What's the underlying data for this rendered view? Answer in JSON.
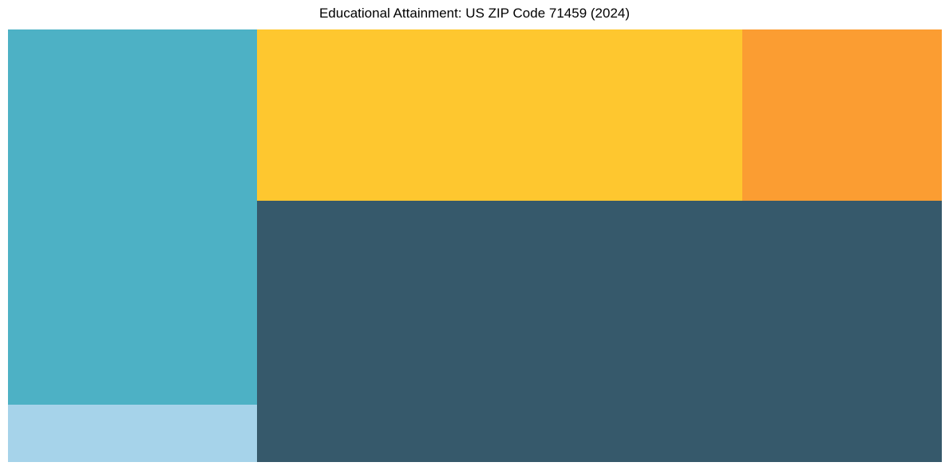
{
  "title": "Educational Attainment: US ZIP Code 71459 (2024)",
  "colors": {
    "background": "#ffffff",
    "title_text": "#000000"
  },
  "chart_data": {
    "type": "treemap",
    "title": "Educational Attainment: US ZIP Code 71459 (2024)",
    "labels_visible": false,
    "legend": "none",
    "cells": [
      {
        "id": "cell-dark-slate",
        "color": "#36596B",
        "area_pct": 44.3,
        "rect": {
          "x": 0.2667,
          "y": 0.396,
          "w": 0.7333,
          "h": 0.604
        }
      },
      {
        "id": "cell-teal",
        "color": "#4DB1C5",
        "area_pct": 23.1,
        "rect": {
          "x": 0.0,
          "y": 0.0,
          "w": 0.2667,
          "h": 0.8674
        }
      },
      {
        "id": "cell-yellow",
        "color": "#FEC72F",
        "area_pct": 20.6,
        "rect": {
          "x": 0.2667,
          "y": 0.0,
          "w": 0.5197,
          "h": 0.396
        }
      },
      {
        "id": "cell-orange",
        "color": "#FB9D32",
        "area_pct": 8.5,
        "rect": {
          "x": 0.7863,
          "y": 0.0,
          "w": 0.2137,
          "h": 0.396
        }
      },
      {
        "id": "cell-light-blue",
        "color": "#A6D3EA",
        "area_pct": 3.5,
        "rect": {
          "x": 0.0,
          "y": 0.8674,
          "w": 0.2667,
          "h": 0.1326
        }
      }
    ]
  }
}
